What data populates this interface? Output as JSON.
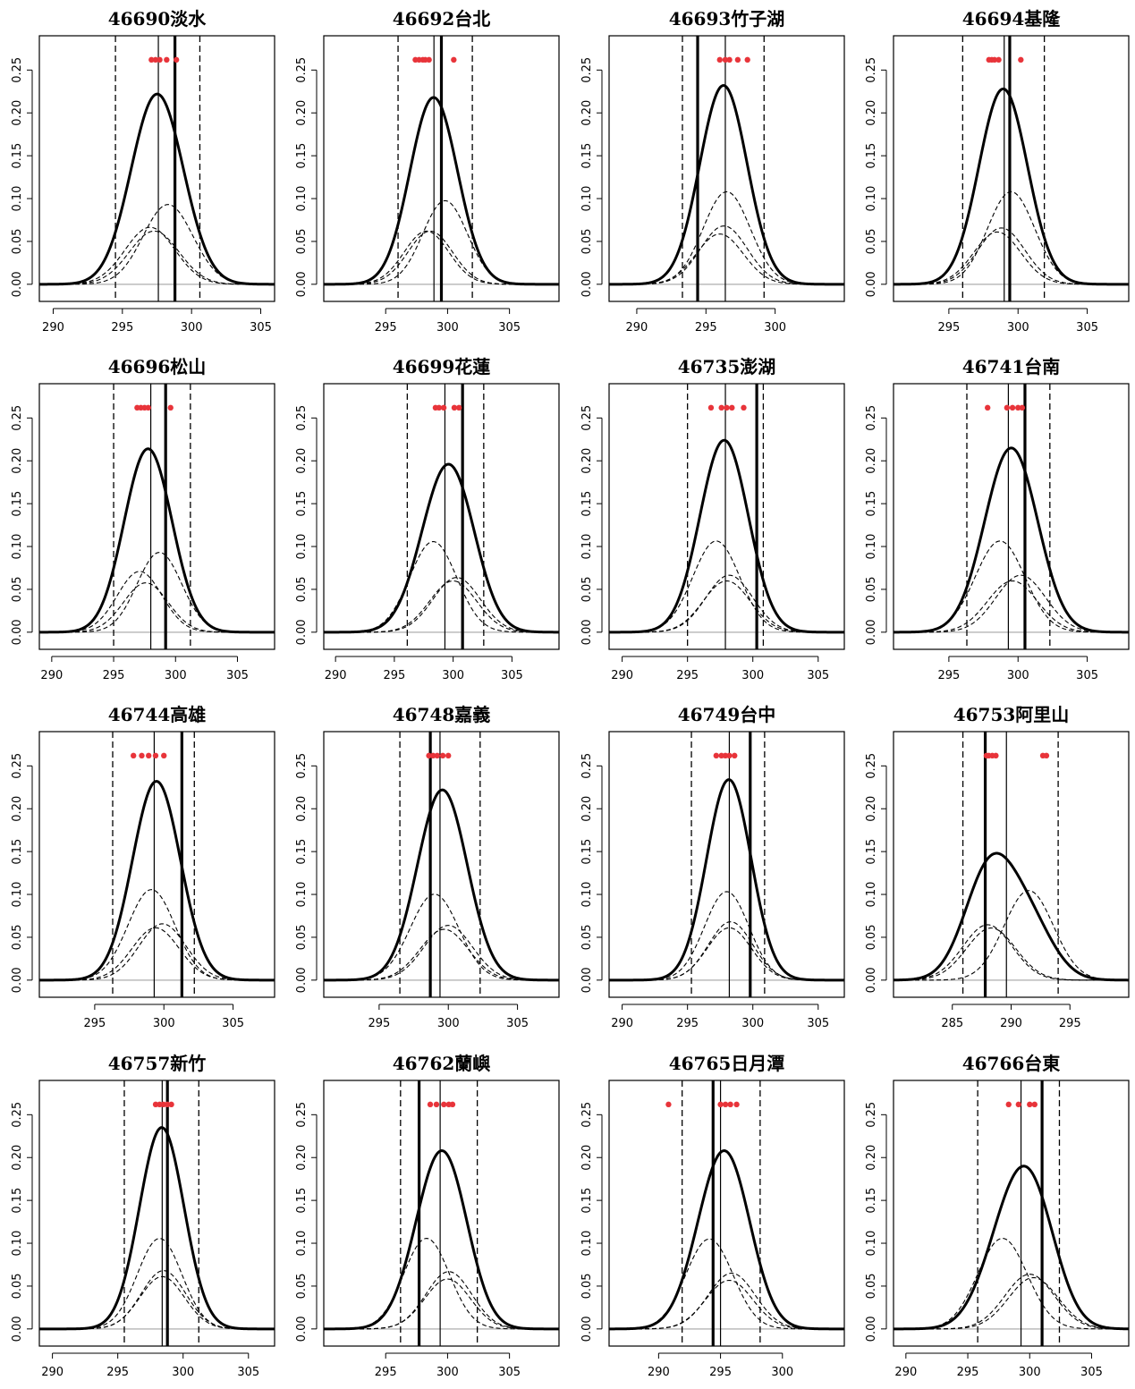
{
  "colors": {
    "ensemble_member": "#e8343a",
    "line": "#000000",
    "baseline": "#bbbbbb"
  },
  "chart_data": [
    {
      "type": "line",
      "title": "46690淡水",
      "xlim": [
        289,
        306
      ],
      "xticks": [
        290,
        295,
        300,
        305
      ],
      "ylim": [
        -0.02,
        0.29
      ],
      "yticks": [
        0.0,
        0.05,
        0.1,
        0.15,
        0.2,
        0.25
      ],
      "ytick_labels": [
        "0.00",
        "0.05",
        "0.10",
        "0.15",
        "0.20",
        "0.25"
      ],
      "components": [
        {
          "mean": 297.0,
          "sd": 1.8,
          "weight": 0.3
        },
        {
          "mean": 297.3,
          "sd": 1.8,
          "weight": 0.28
        },
        {
          "mean": 298.3,
          "sd": 1.8,
          "weight": 0.42
        }
      ],
      "mixture_peak": 0.222,
      "members": [
        297.1,
        297.4,
        297.7,
        298.2,
        298.9
      ],
      "member_y": 0.262,
      "vlines": {
        "mean": 297.6,
        "observation": 298.8,
        "interval": [
          294.5,
          300.6
        ]
      }
    },
    {
      "type": "line",
      "title": "46692台北",
      "xlim": [
        290,
        309
      ],
      "xticks": [
        295,
        300,
        305
      ],
      "ylim": [
        -0.02,
        0.29
      ],
      "yticks": [
        0.0,
        0.05,
        0.1,
        0.15,
        0.2,
        0.25
      ],
      "ytick_labels": [
        "0.00",
        "0.05",
        "0.10",
        "0.15",
        "0.20",
        "0.25"
      ],
      "components": [
        {
          "mean": 298.3,
          "sd": 1.8,
          "weight": 0.28
        },
        {
          "mean": 298.6,
          "sd": 1.8,
          "weight": 0.28
        },
        {
          "mean": 299.8,
          "sd": 1.8,
          "weight": 0.44
        }
      ],
      "mixture_peak": 0.218,
      "members": [
        297.4,
        297.7,
        298.0,
        298.2,
        298.5,
        300.5
      ],
      "member_y": 0.262,
      "vlines": {
        "mean": 298.9,
        "observation": 299.5,
        "interval": [
          296.0,
          302.0
        ]
      }
    },
    {
      "type": "line",
      "title": "46693竹子湖",
      "xlim": [
        288,
        305
      ],
      "xticks": [
        290,
        295,
        300
      ],
      "ylim": [
        -0.02,
        0.29
      ],
      "yticks": [
        0.0,
        0.05,
        0.1,
        0.15,
        0.2,
        0.25
      ],
      "ytick_labels": [
        "0.00",
        "0.05",
        "0.10",
        "0.15",
        "0.20",
        "0.25"
      ],
      "components": [
        {
          "mean": 296.0,
          "sd": 1.7,
          "weight": 0.25
        },
        {
          "mean": 296.3,
          "sd": 1.7,
          "weight": 0.29
        },
        {
          "mean": 296.5,
          "sd": 1.7,
          "weight": 0.46
        }
      ],
      "mixture_peak": 0.232,
      "members": [
        296.0,
        296.4,
        296.7,
        297.3,
        298.0
      ],
      "member_y": 0.262,
      "vlines": {
        "mean": 296.4,
        "observation": 294.4,
        "interval": [
          293.3,
          299.2
        ]
      }
    },
    {
      "type": "line",
      "title": "46694基隆",
      "xlim": [
        291,
        308
      ],
      "xticks": [
        295,
        300,
        305
      ],
      "ylim": [
        -0.02,
        0.29
      ],
      "yticks": [
        0.0,
        0.05,
        0.1,
        0.15,
        0.2,
        0.25
      ],
      "ytick_labels": [
        "0.00",
        "0.05",
        "0.10",
        "0.15",
        "0.20",
        "0.25"
      ],
      "components": [
        {
          "mean": 298.5,
          "sd": 1.7,
          "weight": 0.26
        },
        {
          "mean": 298.8,
          "sd": 1.7,
          "weight": 0.28
        },
        {
          "mean": 299.5,
          "sd": 1.7,
          "weight": 0.46
        }
      ],
      "mixture_peak": 0.228,
      "members": [
        297.9,
        298.1,
        298.3,
        298.6,
        300.2
      ],
      "member_y": 0.262,
      "vlines": {
        "mean": 299.0,
        "observation": 299.4,
        "interval": [
          296.0,
          301.9
        ]
      }
    },
    {
      "type": "line",
      "title": "46696松山",
      "xlim": [
        289,
        308
      ],
      "xticks": [
        290,
        295,
        300,
        305
      ],
      "ylim": [
        -0.02,
        0.29
      ],
      "yticks": [
        0.0,
        0.05,
        0.1,
        0.15,
        0.2,
        0.25
      ],
      "ytick_labels": [
        "0.00",
        "0.05",
        "0.10",
        "0.15",
        "0.20",
        "0.25"
      ],
      "components": [
        {
          "mean": 297.1,
          "sd": 1.8,
          "weight": 0.32
        },
        {
          "mean": 297.6,
          "sd": 1.8,
          "weight": 0.26
        },
        {
          "mean": 298.7,
          "sd": 1.8,
          "weight": 0.42
        }
      ],
      "mixture_peak": 0.214,
      "members": [
        296.9,
        297.2,
        297.5,
        297.8,
        299.6
      ],
      "member_y": 0.262,
      "vlines": {
        "mean": 298.0,
        "observation": 299.2,
        "interval": [
          295.0,
          301.2
        ]
      }
    },
    {
      "type": "line",
      "title": "46699花蓮",
      "xlim": [
        289,
        309
      ],
      "xticks": [
        290,
        295,
        300,
        305
      ],
      "ylim": [
        -0.02,
        0.29
      ],
      "yticks": [
        0.0,
        0.05,
        0.1,
        0.15,
        0.2,
        0.25
      ],
      "ytick_labels": [
        "0.00",
        "0.05",
        "0.10",
        "0.15",
        "0.20",
        "0.25"
      ],
      "components": [
        {
          "mean": 298.3,
          "sd": 2.0,
          "weight": 0.53
        },
        {
          "mean": 300.3,
          "sd": 2.0,
          "weight": 0.32
        },
        {
          "mean": 300.0,
          "sd": 2.0,
          "weight": 0.3
        }
      ],
      "mixture_peak": 0.196,
      "members": [
        298.5,
        298.8,
        299.2,
        300.1,
        300.5
      ],
      "member_y": 0.262,
      "vlines": {
        "mean": 299.3,
        "observation": 300.8,
        "interval": [
          296.1,
          302.6
        ]
      }
    },
    {
      "type": "line",
      "title": "46735澎湖",
      "xlim": [
        289,
        307
      ],
      "xticks": [
        290,
        295,
        300,
        305
      ],
      "ylim": [
        -0.02,
        0.29
      ],
      "yticks": [
        0.0,
        0.05,
        0.1,
        0.15,
        0.2,
        0.25
      ],
      "ytick_labels": [
        "0.00",
        "0.05",
        "0.10",
        "0.15",
        "0.20",
        "0.25"
      ],
      "components": [
        {
          "mean": 297.2,
          "sd": 1.8,
          "weight": 0.48
        },
        {
          "mean": 298.2,
          "sd": 1.8,
          "weight": 0.3
        },
        {
          "mean": 298.0,
          "sd": 1.8,
          "weight": 0.27
        }
      ],
      "mixture_peak": 0.224,
      "members": [
        296.8,
        297.6,
        298.0,
        298.4,
        299.3
      ],
      "member_y": 0.262,
      "vlines": {
        "mean": 297.9,
        "observation": 300.3,
        "interval": [
          295.0,
          300.8
        ]
      }
    },
    {
      "type": "line",
      "title": "46741台南",
      "xlim": [
        291,
        308
      ],
      "xticks": [
        295,
        300,
        305
      ],
      "ylim": [
        -0.02,
        0.29
      ],
      "yticks": [
        0.0,
        0.05,
        0.1,
        0.15,
        0.2,
        0.25
      ],
      "ytick_labels": [
        "0.00",
        "0.05",
        "0.10",
        "0.15",
        "0.20",
        "0.25"
      ],
      "components": [
        {
          "mean": 298.7,
          "sd": 1.8,
          "weight": 0.48
        },
        {
          "mean": 300.2,
          "sd": 1.8,
          "weight": 0.3
        },
        {
          "mean": 299.6,
          "sd": 1.8,
          "weight": 0.27
        }
      ],
      "mixture_peak": 0.215,
      "members": [
        297.8,
        299.2,
        299.6,
        300.0,
        300.3
      ],
      "member_y": 0.262,
      "vlines": {
        "mean": 299.3,
        "observation": 300.5,
        "interval": [
          296.3,
          302.3
        ]
      }
    },
    {
      "type": "line",
      "title": "46744高雄",
      "xlim": [
        291,
        308
      ],
      "xticks": [
        295,
        300,
        305
      ],
      "ylim": [
        -0.02,
        0.29
      ],
      "yticks": [
        0.0,
        0.05,
        0.1,
        0.15,
        0.2,
        0.25
      ],
      "ytick_labels": [
        "0.00",
        "0.05",
        "0.10",
        "0.15",
        "0.20",
        "0.25"
      ],
      "components": [
        {
          "mean": 299.1,
          "sd": 1.7,
          "weight": 0.45
        },
        {
          "mean": 299.9,
          "sd": 1.7,
          "weight": 0.28
        },
        {
          "mean": 299.4,
          "sd": 1.7,
          "weight": 0.26
        }
      ],
      "mixture_peak": 0.232,
      "members": [
        297.8,
        298.4,
        298.9,
        299.4,
        300.0
      ],
      "member_y": 0.262,
      "vlines": {
        "mean": 299.3,
        "observation": 301.3,
        "interval": [
          296.3,
          302.2
        ]
      }
    },
    {
      "type": "line",
      "title": "46748嘉義",
      "xlim": [
        291,
        308
      ],
      "xticks": [
        295,
        300,
        305
      ],
      "ylim": [
        -0.02,
        0.29
      ],
      "yticks": [
        0.0,
        0.05,
        0.1,
        0.15,
        0.2,
        0.25
      ],
      "ytick_labels": [
        "0.00",
        "0.05",
        "0.10",
        "0.15",
        "0.20",
        "0.25"
      ],
      "components": [
        {
          "mean": 299.0,
          "sd": 1.75,
          "weight": 0.44
        },
        {
          "mean": 300.0,
          "sd": 1.75,
          "weight": 0.28
        },
        {
          "mean": 299.7,
          "sd": 1.75,
          "weight": 0.26
        }
      ],
      "mixture_peak": 0.222,
      "members": [
        298.6,
        298.9,
        299.2,
        299.6,
        300.0
      ],
      "member_y": 0.262,
      "vlines": {
        "mean": 299.4,
        "observation": 298.7,
        "interval": [
          296.5,
          302.3
        ]
      }
    },
    {
      "type": "line",
      "title": "46749台中",
      "xlim": [
        289,
        307
      ],
      "xticks": [
        290,
        295,
        300,
        305
      ],
      "ylim": [
        -0.02,
        0.29
      ],
      "yticks": [
        0.0,
        0.05,
        0.1,
        0.15,
        0.2,
        0.25
      ],
      "ytick_labels": [
        "0.00",
        "0.05",
        "0.10",
        "0.15",
        "0.20",
        "0.25"
      ],
      "components": [
        {
          "mean": 298.0,
          "sd": 1.7,
          "weight": 0.44
        },
        {
          "mean": 298.3,
          "sd": 1.7,
          "weight": 0.29
        },
        {
          "mean": 298.2,
          "sd": 1.7,
          "weight": 0.26
        }
      ],
      "mixture_peak": 0.234,
      "members": [
        297.2,
        297.6,
        297.9,
        298.2,
        298.6
      ],
      "member_y": 0.262,
      "vlines": {
        "mean": 298.2,
        "observation": 299.8,
        "interval": [
          295.3,
          300.9
        ]
      }
    },
    {
      "type": "line",
      "title": "46753阿里山",
      "xlim": [
        280,
        300
      ],
      "xticks": [
        285,
        290,
        295
      ],
      "ylim": [
        -0.02,
        0.29
      ],
      "yticks": [
        0.0,
        0.05,
        0.1,
        0.15,
        0.2,
        0.25
      ],
      "ytick_labels": [
        "0.00",
        "0.05",
        "0.10",
        "0.15",
        "0.20",
        "0.25"
      ],
      "components": [
        {
          "mean": 288.0,
          "sd": 2.1,
          "weight": 0.34
        },
        {
          "mean": 288.3,
          "sd": 2.1,
          "weight": 0.32
        },
        {
          "mean": 291.5,
          "sd": 2.1,
          "weight": 0.55
        }
      ],
      "mixture_peak": 0.148,
      "members": [
        287.9,
        288.1,
        288.4,
        288.7,
        292.7,
        293.0
      ],
      "member_y": 0.262,
      "vlines": {
        "mean": 289.6,
        "observation": 287.8,
        "interval": [
          285.9,
          294.0
        ]
      }
    },
    {
      "type": "line",
      "title": "46757新竹",
      "xlim": [
        289,
        307
      ],
      "xticks": [
        290,
        295,
        300,
        305
      ],
      "ylim": [
        -0.02,
        0.29
      ],
      "yticks": [
        0.0,
        0.05,
        0.1,
        0.15,
        0.2,
        0.25
      ],
      "ytick_labels": [
        "0.00",
        "0.05",
        "0.10",
        "0.15",
        "0.20",
        "0.25"
      ],
      "components": [
        {
          "mean": 298.2,
          "sd": 1.7,
          "weight": 0.45
        },
        {
          "mean": 298.5,
          "sd": 1.7,
          "weight": 0.29
        },
        {
          "mean": 298.4,
          "sd": 1.7,
          "weight": 0.26
        }
      ],
      "mixture_peak": 0.235,
      "members": [
        297.9,
        298.2,
        298.5,
        298.8,
        299.1
      ],
      "member_y": 0.262,
      "vlines": {
        "mean": 298.4,
        "observation": 298.8,
        "interval": [
          295.5,
          301.2
        ]
      }
    },
    {
      "type": "line",
      "title": "46762蘭嶼",
      "xlim": [
        290,
        309
      ],
      "xticks": [
        295,
        300,
        305
      ],
      "ylim": [
        -0.02,
        0.29
      ],
      "yticks": [
        0.0,
        0.05,
        0.1,
        0.15,
        0.2,
        0.25
      ],
      "ytick_labels": [
        "0.00",
        "0.05",
        "0.10",
        "0.15",
        "0.20",
        "0.25"
      ],
      "components": [
        {
          "mean": 298.3,
          "sd": 1.85,
          "weight": 0.49
        },
        {
          "mean": 300.1,
          "sd": 1.85,
          "weight": 0.31
        },
        {
          "mean": 300.0,
          "sd": 1.85,
          "weight": 0.27
        }
      ],
      "mixture_peak": 0.208,
      "members": [
        298.6,
        299.1,
        299.7,
        300.1,
        300.4
      ],
      "member_y": 0.262,
      "vlines": {
        "mean": 299.4,
        "observation": 297.7,
        "interval": [
          296.2,
          302.4
        ]
      }
    },
    {
      "type": "line",
      "title": "46765日月潭",
      "xlim": [
        286,
        305
      ],
      "xticks": [
        290,
        295,
        300
      ],
      "ylim": [
        -0.02,
        0.29
      ],
      "yticks": [
        0.0,
        0.05,
        0.1,
        0.15,
        0.2,
        0.25
      ],
      "ytick_labels": [
        "0.00",
        "0.05",
        "0.10",
        "0.15",
        "0.20",
        "0.25"
      ],
      "components": [
        {
          "mean": 294.1,
          "sd": 1.9,
          "weight": 0.5
        },
        {
          "mean": 295.9,
          "sd": 1.9,
          "weight": 0.31
        },
        {
          "mean": 295.7,
          "sd": 1.9,
          "weight": 0.27
        }
      ],
      "mixture_peak": 0.208,
      "members": [
        290.8,
        295.0,
        295.4,
        295.8,
        296.3
      ],
      "member_y": 0.262,
      "vlines": {
        "mean": 295.0,
        "observation": 294.4,
        "interval": [
          291.9,
          298.2
        ]
      }
    },
    {
      "type": "line",
      "title": "46766台東",
      "xlim": [
        289,
        308
      ],
      "xticks": [
        290,
        295,
        300,
        305
      ],
      "ylim": [
        -0.02,
        0.29
      ],
      "yticks": [
        0.0,
        0.05,
        0.1,
        0.15,
        0.2,
        0.25
      ],
      "ytick_labels": [
        "0.00",
        "0.05",
        "0.10",
        "0.15",
        "0.20",
        "0.25"
      ],
      "components": [
        {
          "mean": 297.8,
          "sd": 2.0,
          "weight": 0.53
        },
        {
          "mean": 300.0,
          "sd": 2.0,
          "weight": 0.32
        },
        {
          "mean": 300.3,
          "sd": 2.0,
          "weight": 0.3
        }
      ],
      "mixture_peak": 0.19,
      "members": [
        298.3,
        299.1,
        300.0,
        300.4
      ],
      "member_y": 0.262,
      "vlines": {
        "mean": 299.3,
        "observation": 301.0,
        "interval": [
          295.8,
          302.4
        ]
      }
    }
  ]
}
